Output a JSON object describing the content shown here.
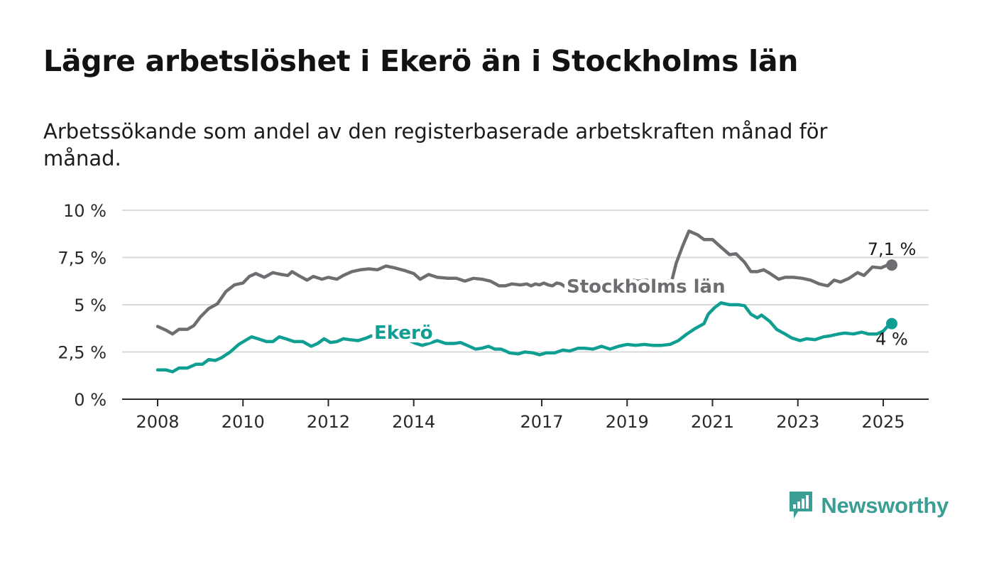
{
  "header": {
    "title": "Lägre arbetslöshet i Ekerö än i Stockholms län",
    "subtitle": "Arbetssökande som andel av den registerbaserade arbetskraften månad för månad."
  },
  "brand": {
    "name": "Newsworthy",
    "color": "#3a9e94",
    "icon": "newsworthy-logo-icon"
  },
  "chart_data": {
    "type": "line",
    "title": "Lägre arbetslöshet i Ekerö än i Stockholms län",
    "subtitle": "Arbetssökande som andel av den registerbaserade arbetskraften månad för månad.",
    "xlabel": "",
    "ylabel": "",
    "xlim": [
      2008.0,
      2026.0
    ],
    "ylim": [
      0,
      10
    ],
    "grid": true,
    "legend": "inline-labels",
    "x_ticks": [
      {
        "label": "2008",
        "value": 2008.0
      },
      {
        "label": "2010",
        "value": 2010.0
      },
      {
        "label": "2012",
        "value": 2012.0
      },
      {
        "label": "2014",
        "value": 2014.0
      },
      {
        "label": "2017",
        "value": 2017.0
      },
      {
        "label": "2019",
        "value": 2019.0
      },
      {
        "label": "2021",
        "value": 2021.0
      },
      {
        "label": "2023",
        "value": 2023.0
      },
      {
        "label": "2025",
        "value": 2025.0
      }
    ],
    "y_ticks": [
      {
        "label": "0 %",
        "value": 0
      },
      {
        "label": "2,5 %",
        "value": 2.5
      },
      {
        "label": "5 %",
        "value": 5
      },
      {
        "label": "7,5 %",
        "value": 7.5
      },
      {
        "label": "10 %",
        "value": 10
      }
    ],
    "series": [
      {
        "name": "Stockholms län",
        "color": "#6e6e72",
        "end_label": "7,1 %",
        "points": [
          [
            2008.0,
            3.85
          ],
          [
            2008.2,
            3.65
          ],
          [
            2008.35,
            3.45
          ],
          [
            2008.5,
            3.7
          ],
          [
            2008.7,
            3.7
          ],
          [
            2008.85,
            3.9
          ],
          [
            2009.0,
            4.35
          ],
          [
            2009.2,
            4.8
          ],
          [
            2009.4,
            5.05
          ],
          [
            2009.6,
            5.7
          ],
          [
            2009.8,
            6.05
          ],
          [
            2010.0,
            6.15
          ],
          [
            2010.15,
            6.5
          ],
          [
            2010.3,
            6.65
          ],
          [
            2010.5,
            6.45
          ],
          [
            2010.7,
            6.7
          ],
          [
            2010.9,
            6.6
          ],
          [
            2011.05,
            6.55
          ],
          [
            2011.15,
            6.75
          ],
          [
            2011.3,
            6.55
          ],
          [
            2011.5,
            6.3
          ],
          [
            2011.65,
            6.5
          ],
          [
            2011.85,
            6.35
          ],
          [
            2012.0,
            6.45
          ],
          [
            2012.2,
            6.35
          ],
          [
            2012.35,
            6.55
          ],
          [
            2012.55,
            6.75
          ],
          [
            2012.75,
            6.85
          ],
          [
            2012.95,
            6.9
          ],
          [
            2013.15,
            6.85
          ],
          [
            2013.35,
            7.05
          ],
          [
            2013.55,
            6.95
          ],
          [
            2013.8,
            6.8
          ],
          [
            2014.0,
            6.65
          ],
          [
            2014.15,
            6.35
          ],
          [
            2014.35,
            6.6
          ],
          [
            2014.55,
            6.45
          ],
          [
            2014.8,
            6.4
          ],
          [
            2015.0,
            6.4
          ],
          [
            2015.2,
            6.25
          ],
          [
            2015.4,
            6.4
          ],
          [
            2015.6,
            6.35
          ],
          [
            2015.8,
            6.25
          ],
          [
            2016.0,
            6.0
          ],
          [
            2016.15,
            6.0
          ],
          [
            2016.3,
            6.1
          ],
          [
            2016.5,
            6.05
          ],
          [
            2016.65,
            6.1
          ],
          [
            2016.75,
            6.0
          ],
          [
            2016.85,
            6.1
          ],
          [
            2016.95,
            6.05
          ],
          [
            2017.05,
            6.15
          ],
          [
            2017.15,
            6.05
          ],
          [
            2017.25,
            6.0
          ],
          [
            2017.35,
            6.15
          ],
          [
            2017.45,
            6.1
          ],
          [
            2017.55,
            5.95
          ],
          [
            2017.65,
            6.05
          ],
          [
            2017.75,
            6.05
          ],
          [
            2017.9,
            6.0
          ],
          [
            2018.05,
            6.25
          ],
          [
            2018.25,
            6.1
          ],
          [
            2018.45,
            6.2
          ],
          [
            2018.65,
            6.1
          ],
          [
            2018.85,
            6.2
          ],
          [
            2019.05,
            6.35
          ],
          [
            2019.25,
            6.25
          ],
          [
            2019.45,
            6.3
          ],
          [
            2019.65,
            6.2
          ],
          [
            2019.85,
            6.2
          ],
          [
            2020.05,
            6.3
          ],
          [
            2020.15,
            7.2
          ],
          [
            2020.3,
            8.1
          ],
          [
            2020.45,
            8.9
          ],
          [
            2020.65,
            8.7
          ],
          [
            2020.8,
            8.45
          ],
          [
            2021.0,
            8.45
          ],
          [
            2021.2,
            8.05
          ],
          [
            2021.4,
            7.65
          ],
          [
            2021.55,
            7.7
          ],
          [
            2021.75,
            7.25
          ],
          [
            2021.9,
            6.75
          ],
          [
            2022.05,
            6.75
          ],
          [
            2022.2,
            6.85
          ],
          [
            2022.35,
            6.65
          ],
          [
            2022.55,
            6.35
          ],
          [
            2022.7,
            6.45
          ],
          [
            2022.9,
            6.45
          ],
          [
            2023.1,
            6.4
          ],
          [
            2023.3,
            6.3
          ],
          [
            2023.5,
            6.1
          ],
          [
            2023.7,
            6.0
          ],
          [
            2023.85,
            6.3
          ],
          [
            2024.0,
            6.2
          ],
          [
            2024.2,
            6.4
          ],
          [
            2024.4,
            6.7
          ],
          [
            2024.55,
            6.55
          ],
          [
            2024.75,
            7.0
          ],
          [
            2024.95,
            6.95
          ],
          [
            2025.15,
            7.15
          ],
          [
            2025.2,
            7.1
          ]
        ]
      },
      {
        "name": "Ekerö",
        "color": "#0f9e92",
        "end_label": "4 %",
        "points": [
          [
            2008.0,
            1.55
          ],
          [
            2008.2,
            1.55
          ],
          [
            2008.35,
            1.45
          ],
          [
            2008.5,
            1.65
          ],
          [
            2008.7,
            1.65
          ],
          [
            2008.9,
            1.85
          ],
          [
            2009.05,
            1.85
          ],
          [
            2009.2,
            2.1
          ],
          [
            2009.35,
            2.05
          ],
          [
            2009.5,
            2.2
          ],
          [
            2009.7,
            2.5
          ],
          [
            2009.9,
            2.9
          ],
          [
            2010.05,
            3.1
          ],
          [
            2010.2,
            3.3
          ],
          [
            2010.35,
            3.2
          ],
          [
            2010.55,
            3.05
          ],
          [
            2010.7,
            3.05
          ],
          [
            2010.85,
            3.3
          ],
          [
            2011.0,
            3.2
          ],
          [
            2011.2,
            3.05
          ],
          [
            2011.4,
            3.05
          ],
          [
            2011.6,
            2.8
          ],
          [
            2011.75,
            2.95
          ],
          [
            2011.9,
            3.2
          ],
          [
            2012.05,
            3.0
          ],
          [
            2012.2,
            3.05
          ],
          [
            2012.35,
            3.2
          ],
          [
            2012.5,
            3.15
          ],
          [
            2012.7,
            3.1
          ],
          [
            2012.9,
            3.25
          ],
          [
            2013.0,
            3.35
          ],
          [
            2013.15,
            3.3
          ],
          [
            2013.3,
            3.3
          ],
          [
            2013.45,
            3.25
          ],
          [
            2013.6,
            3.25
          ],
          [
            2013.75,
            3.2
          ],
          [
            2013.9,
            3.1
          ],
          [
            2014.05,
            2.95
          ],
          [
            2014.2,
            2.85
          ],
          [
            2014.35,
            2.95
          ],
          [
            2014.55,
            3.1
          ],
          [
            2014.75,
            2.95
          ],
          [
            2014.95,
            2.95
          ],
          [
            2015.1,
            3.0
          ],
          [
            2015.3,
            2.8
          ],
          [
            2015.45,
            2.65
          ],
          [
            2015.6,
            2.7
          ],
          [
            2015.75,
            2.8
          ],
          [
            2015.9,
            2.65
          ],
          [
            2016.05,
            2.65
          ],
          [
            2016.25,
            2.45
          ],
          [
            2016.45,
            2.4
          ],
          [
            2016.6,
            2.5
          ],
          [
            2016.8,
            2.45
          ],
          [
            2016.95,
            2.35
          ],
          [
            2017.1,
            2.45
          ],
          [
            2017.3,
            2.45
          ],
          [
            2017.5,
            2.6
          ],
          [
            2017.65,
            2.55
          ],
          [
            2017.85,
            2.7
          ],
          [
            2018.0,
            2.7
          ],
          [
            2018.2,
            2.65
          ],
          [
            2018.4,
            2.8
          ],
          [
            2018.6,
            2.65
          ],
          [
            2018.8,
            2.8
          ],
          [
            2019.0,
            2.9
          ],
          [
            2019.2,
            2.85
          ],
          [
            2019.4,
            2.9
          ],
          [
            2019.6,
            2.85
          ],
          [
            2019.8,
            2.85
          ],
          [
            2020.0,
            2.9
          ],
          [
            2020.2,
            3.1
          ],
          [
            2020.4,
            3.45
          ],
          [
            2020.6,
            3.75
          ],
          [
            2020.8,
            4.0
          ],
          [
            2020.9,
            4.5
          ],
          [
            2021.05,
            4.85
          ],
          [
            2021.2,
            5.1
          ],
          [
            2021.4,
            5.0
          ],
          [
            2021.6,
            5.0
          ],
          [
            2021.75,
            4.95
          ],
          [
            2021.9,
            4.5
          ],
          [
            2022.05,
            4.3
          ],
          [
            2022.15,
            4.45
          ],
          [
            2022.35,
            4.1
          ],
          [
            2022.5,
            3.7
          ],
          [
            2022.7,
            3.45
          ],
          [
            2022.85,
            3.25
          ],
          [
            2023.05,
            3.1
          ],
          [
            2023.2,
            3.2
          ],
          [
            2023.4,
            3.15
          ],
          [
            2023.6,
            3.3
          ],
          [
            2023.75,
            3.35
          ],
          [
            2023.95,
            3.45
          ],
          [
            2024.1,
            3.5
          ],
          [
            2024.3,
            3.45
          ],
          [
            2024.5,
            3.55
          ],
          [
            2024.65,
            3.45
          ],
          [
            2024.85,
            3.45
          ],
          [
            2025.0,
            3.6
          ],
          [
            2025.1,
            3.85
          ],
          [
            2025.2,
            4.0
          ]
        ]
      }
    ]
  }
}
